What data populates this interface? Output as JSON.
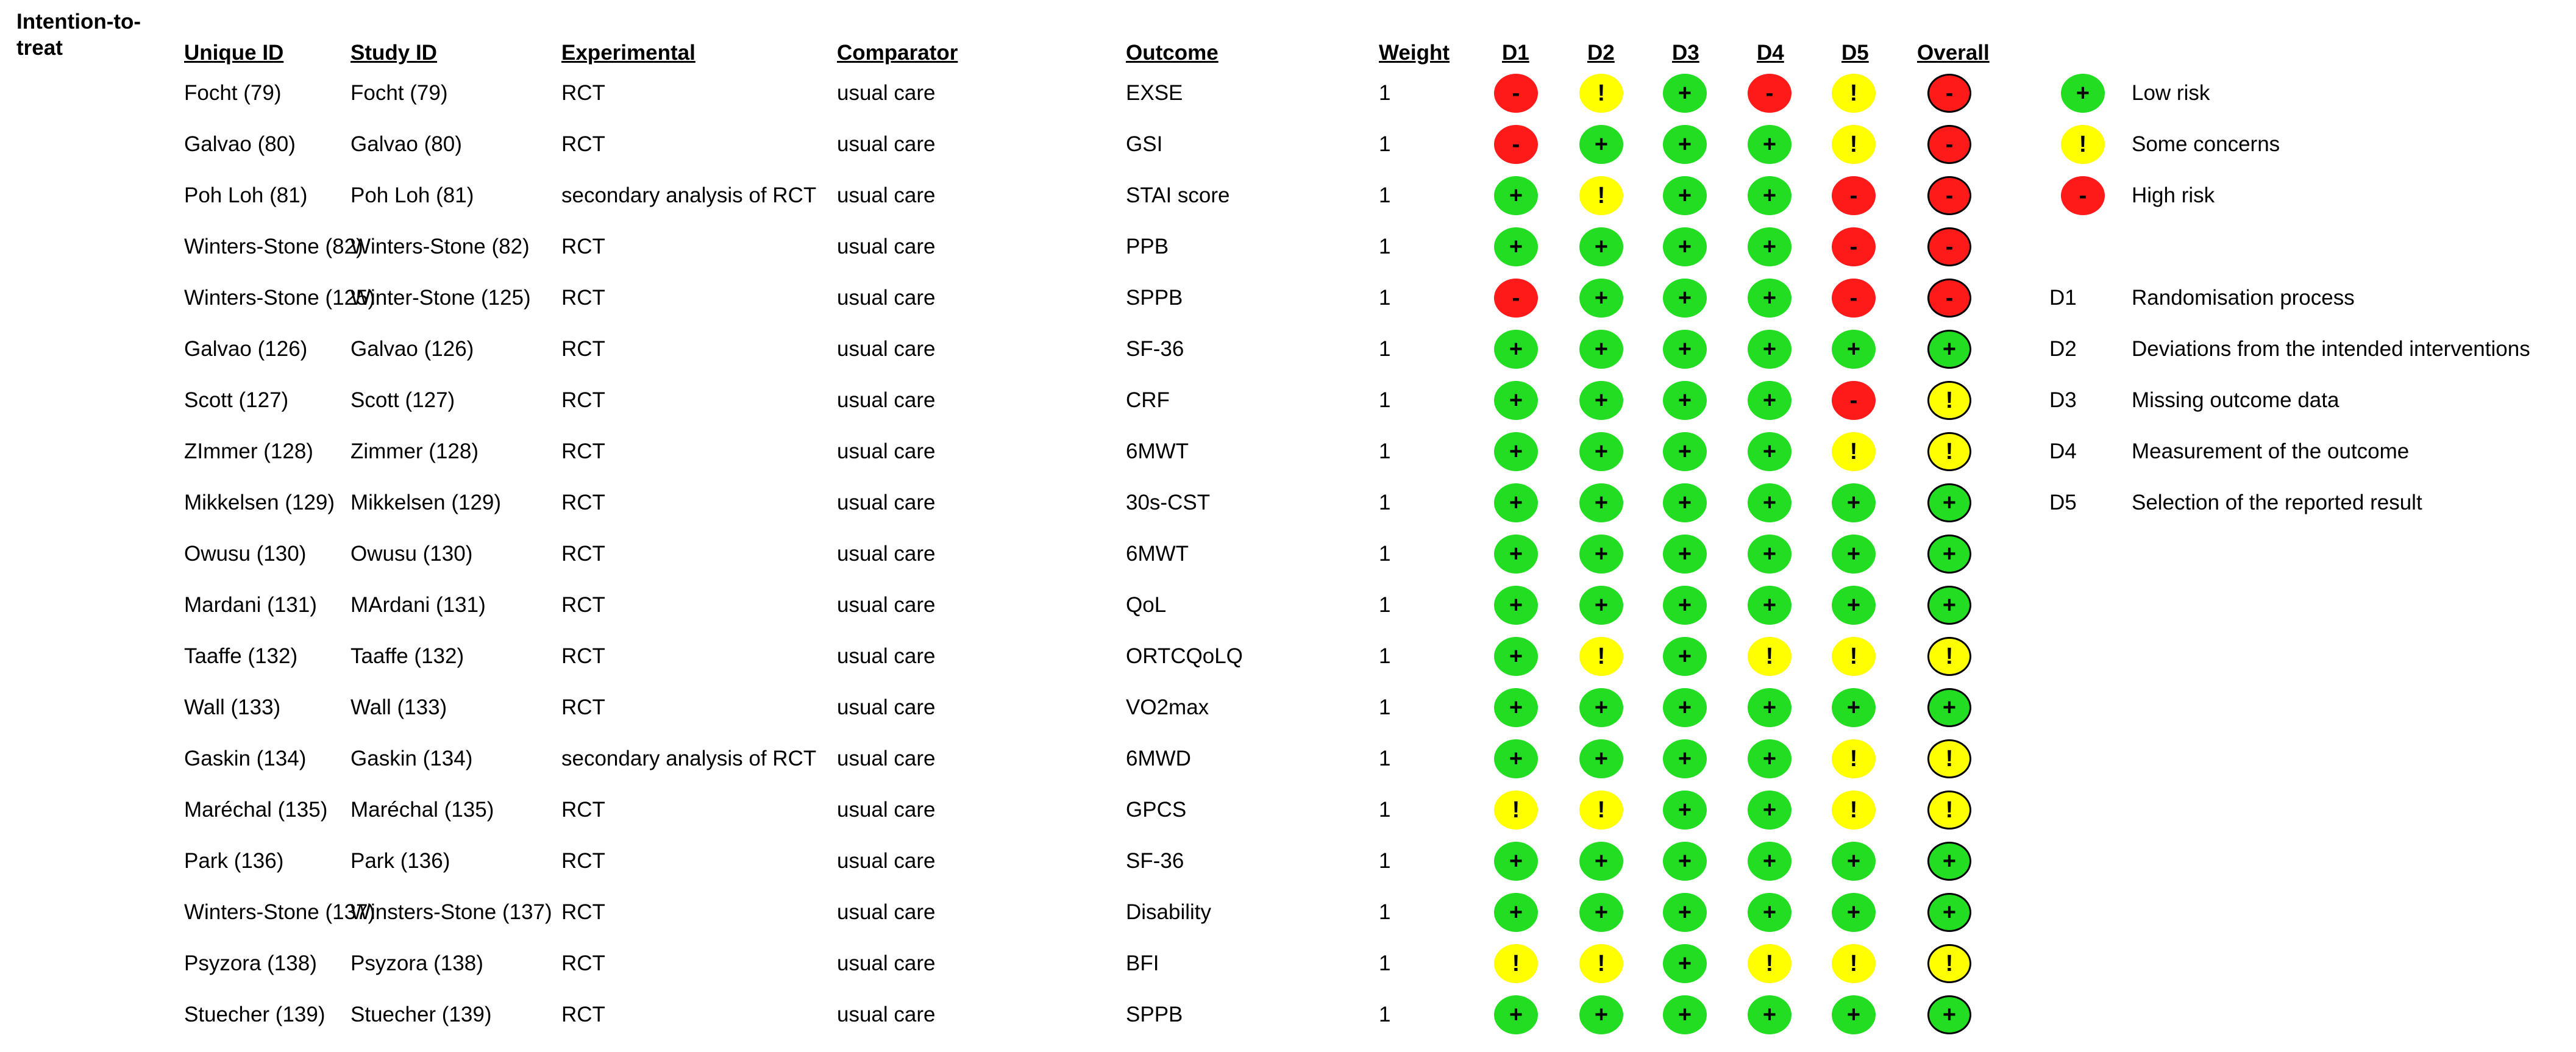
{
  "section_label_line1": "Intention-to-",
  "section_label_line2": "treat",
  "headers": {
    "unique_id": "Unique ID",
    "study_id": "Study ID",
    "experimental": "Experimental",
    "comparator": "Comparator",
    "outcome": "Outcome",
    "weight": "Weight",
    "d1": "D1",
    "d2": "D2",
    "d3": "D3",
    "d4": "D4",
    "d5": "D5",
    "overall": "Overall"
  },
  "judgement_styles": {
    "low": {
      "symbol": "+",
      "color": "#22dd22"
    },
    "some": {
      "symbol": "!",
      "color": "#ffff00"
    },
    "high": {
      "symbol": "-",
      "color": "#ff1a1a"
    }
  },
  "rows": [
    {
      "unique_id": "Focht (79)",
      "study_id": "Focht (79)",
      "experimental": "RCT",
      "comparator": "usual care",
      "outcome": "EXSE",
      "weight": "1",
      "d": [
        "high",
        "some",
        "low",
        "high",
        "some"
      ],
      "overall": "high"
    },
    {
      "unique_id": "Galvao (80)",
      "study_id": "Galvao (80)",
      "experimental": "RCT",
      "comparator": "usual care",
      "outcome": "GSI",
      "weight": "1",
      "d": [
        "high",
        "low",
        "low",
        "low",
        "some"
      ],
      "overall": "high"
    },
    {
      "unique_id": "Poh Loh (81)",
      "study_id": "Poh Loh (81)",
      "experimental": "secondary analysis of RCT",
      "comparator": "usual care",
      "outcome": "STAI score",
      "weight": "1",
      "d": [
        "low",
        "some",
        "low",
        "low",
        "high"
      ],
      "overall": "high"
    },
    {
      "unique_id": "Winters-Stone (82)",
      "study_id": "Winters-Stone (82)",
      "experimental": "RCT",
      "comparator": "usual care",
      "outcome": "PPB",
      "weight": "1",
      "d": [
        "low",
        "low",
        "low",
        "low",
        "high"
      ],
      "overall": "high"
    },
    {
      "unique_id": "Winters-Stone (125)",
      "study_id": "Winter-Stone (125)",
      "experimental": "RCT",
      "comparator": "usual care",
      "outcome": "SPPB",
      "weight": "1",
      "d": [
        "high",
        "low",
        "low",
        "low",
        "high"
      ],
      "overall": "high"
    },
    {
      "unique_id": "Galvao (126)",
      "study_id": "Galvao (126)",
      "experimental": "RCT",
      "comparator": "usual care",
      "outcome": "SF-36",
      "weight": "1",
      "d": [
        "low",
        "low",
        "low",
        "low",
        "low"
      ],
      "overall": "low"
    },
    {
      "unique_id": "Scott (127)",
      "study_id": "Scott (127)",
      "experimental": "RCT",
      "comparator": "usual care",
      "outcome": "CRF",
      "weight": "1",
      "d": [
        "low",
        "low",
        "low",
        "low",
        "high"
      ],
      "overall": "some"
    },
    {
      "unique_id": "ZImmer (128)",
      "study_id": "Zimmer (128)",
      "experimental": "RCT",
      "comparator": "usual care",
      "outcome": "6MWT",
      "weight": "1",
      "d": [
        "low",
        "low",
        "low",
        "low",
        "some"
      ],
      "overall": "some"
    },
    {
      "unique_id": "Mikkelsen (129)",
      "study_id": "Mikkelsen (129)",
      "experimental": "RCT",
      "comparator": "usual care",
      "outcome": "30s-CST",
      "weight": "1",
      "d": [
        "low",
        "low",
        "low",
        "low",
        "low"
      ],
      "overall": "low"
    },
    {
      "unique_id": "Owusu (130)",
      "study_id": "Owusu (130)",
      "experimental": "RCT",
      "comparator": "usual care",
      "outcome": "6MWT",
      "weight": "1",
      "d": [
        "low",
        "low",
        "low",
        "low",
        "low"
      ],
      "overall": "low"
    },
    {
      "unique_id": "Mardani (131)",
      "study_id": "MArdani (131)",
      "experimental": "RCT",
      "comparator": "usual care",
      "outcome": "QoL",
      "weight": "1",
      "d": [
        "low",
        "low",
        "low",
        "low",
        "low"
      ],
      "overall": "low"
    },
    {
      "unique_id": "Taaffe (132)",
      "study_id": "Taaffe (132)",
      "experimental": "RCT",
      "comparator": "usual care",
      "outcome": "ORTCQoLQ",
      "weight": "1",
      "d": [
        "low",
        "some",
        "low",
        "some",
        "some"
      ],
      "overall": "some"
    },
    {
      "unique_id": "Wall (133)",
      "study_id": "Wall (133)",
      "experimental": "RCT",
      "comparator": "usual care",
      "outcome": "VO2max",
      "weight": "1",
      "d": [
        "low",
        "low",
        "low",
        "low",
        "low"
      ],
      "overall": "low"
    },
    {
      "unique_id": "Gaskin (134)",
      "study_id": "Gaskin (134)",
      "experimental": "secondary analysis of RCT",
      "comparator": "usual care",
      "outcome": "6MWD",
      "weight": "1",
      "d": [
        "low",
        "low",
        "low",
        "low",
        "some"
      ],
      "overall": "some"
    },
    {
      "unique_id": "Maréchal (135)",
      "study_id": "Maréchal (135)",
      "experimental": "RCT",
      "comparator": "usual care",
      "outcome": "GPCS",
      "weight": "1",
      "d": [
        "some",
        "some",
        "low",
        "low",
        "some"
      ],
      "overall": "some"
    },
    {
      "unique_id": "Park (136)",
      "study_id": "Park (136)",
      "experimental": "RCT",
      "comparator": "usual care",
      "outcome": "SF-36",
      "weight": "1",
      "d": [
        "low",
        "low",
        "low",
        "low",
        "low"
      ],
      "overall": "low"
    },
    {
      "unique_id": "Winters-Stone (137)",
      "study_id": "Winsters-Stone (137)",
      "experimental": "RCT",
      "comparator": "usual care",
      "outcome": "Disability",
      "weight": "1",
      "d": [
        "low",
        "low",
        "low",
        "low",
        "low"
      ],
      "overall": "low"
    },
    {
      "unique_id": "Psyzora (138)",
      "study_id": "Psyzora (138)",
      "experimental": "RCT",
      "comparator": "usual care",
      "outcome": "BFI",
      "weight": "1",
      "d": [
        "some",
        "some",
        "low",
        "some",
        "some"
      ],
      "overall": "some"
    },
    {
      "unique_id": "Stuecher  (139)",
      "study_id": "Stuecher (139)",
      "experimental": "RCT",
      "comparator": "usual care",
      "outcome": "SPPB",
      "weight": "1",
      "d": [
        "low",
        "low",
        "low",
        "low",
        "low"
      ],
      "overall": "low"
    }
  ],
  "legend": {
    "judgements": [
      {
        "level": "low",
        "label": "Low risk"
      },
      {
        "level": "some",
        "label": "Some concerns"
      },
      {
        "level": "high",
        "label": "High risk"
      }
    ],
    "domains": [
      {
        "code": "D1",
        "label": "Randomisation process"
      },
      {
        "code": "D2",
        "label": "Deviations from the intended interventions"
      },
      {
        "code": "D3",
        "label": "Missing outcome data"
      },
      {
        "code": "D4",
        "label": "Measurement of the outcome"
      },
      {
        "code": "D5",
        "label": "Selection of the reported result"
      }
    ]
  }
}
